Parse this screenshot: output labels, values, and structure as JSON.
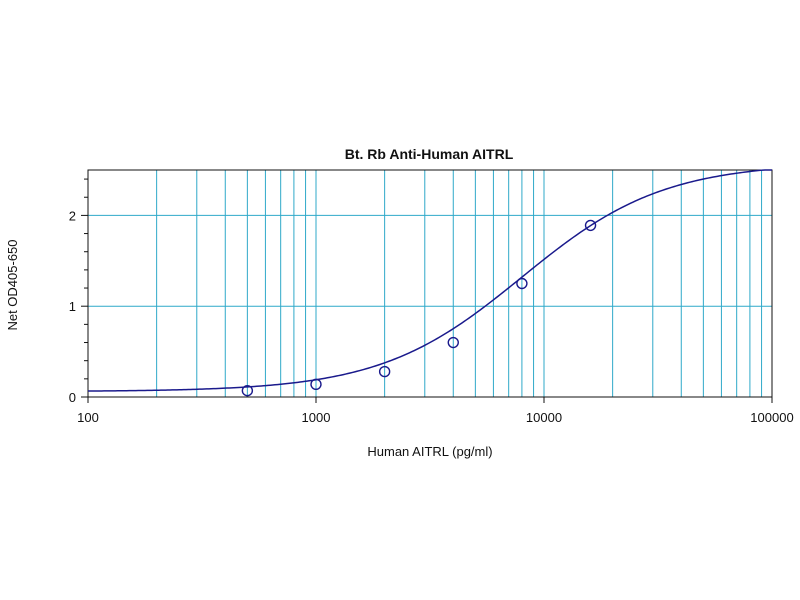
{
  "chart_data": {
    "type": "scatter",
    "title": "Bt. Rb Anti-Human AITRL",
    "xlabel": "Human AITRL (pg/ml)",
    "ylabel": "Net OD405-650",
    "x_scale": "log",
    "xlim": [
      100,
      100000
    ],
    "ylim": [
      0,
      2.5
    ],
    "x_ticks": [
      100,
      1000,
      10000,
      100000
    ],
    "x_tick_labels": [
      "100",
      "1000",
      "10000",
      "100000"
    ],
    "y_ticks": [
      0,
      1,
      2
    ],
    "y_tick_labels": [
      "0",
      "1",
      "2"
    ],
    "grid": true,
    "legend": "none",
    "points": [
      {
        "x": 500,
        "y": 0.07
      },
      {
        "x": 1000,
        "y": 0.14
      },
      {
        "x": 2000,
        "y": 0.28
      },
      {
        "x": 4000,
        "y": 0.6
      },
      {
        "x": 8000,
        "y": 1.25
      },
      {
        "x": 16000,
        "y": 1.89
      }
    ],
    "fit_curve": {
      "model": "4PL",
      "bottom": 0.06,
      "top": 2.58,
      "ec50": 8000,
      "hill": 1.4
    },
    "colors": {
      "curve": "#1a1a8c",
      "points": "#1a1a8c",
      "grid": "#2fa9c9",
      "frame": "#111111"
    }
  }
}
